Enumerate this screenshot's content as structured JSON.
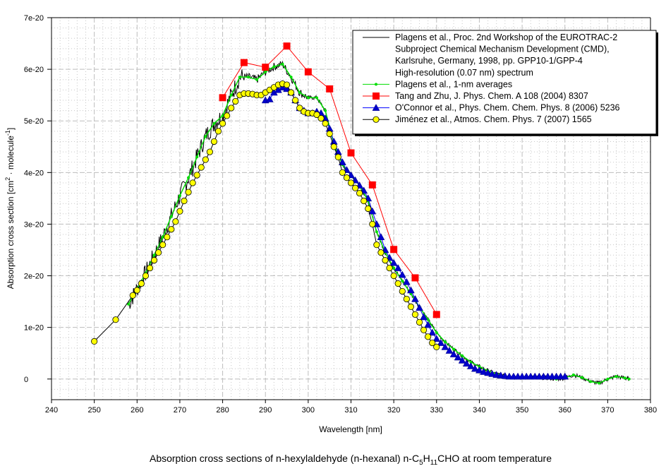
{
  "chart_data": {
    "type": "line",
    "title": "Absorption cross sections of n-hexylaldehyde (n-hexanal) n-C5H11CHO at room temperature",
    "title_parts": {
      "pre": "Absorption cross sections of n-hexylaldehyde (n-hexanal) n-C",
      "sub1": "5",
      "mid": "H",
      "sub2": "11",
      "post": "CHO at room temperature"
    },
    "xlabel": "Wavelength [nm]",
    "ylabel": "Absorption cross section [cm2 · molecule-1]",
    "ylabel_parts": {
      "pre": "Absorption cross section [cm",
      "sup1": "2",
      "mid": " · molecule",
      "sup2": "-1",
      "post": "]"
    },
    "xlim": [
      240,
      380
    ],
    "ylim": [
      -4e-21,
      7e-20
    ],
    "xticks": [
      "240",
      "250",
      "260",
      "270",
      "280",
      "290",
      "300",
      "310",
      "320",
      "330",
      "340",
      "350",
      "360",
      "370",
      "380"
    ],
    "yticks": [
      "0",
      "1e-20",
      "2e-20",
      "3e-20",
      "4e-20",
      "5e-20",
      "6e-20",
      "7e-20"
    ],
    "ytick_values": [
      0,
      1,
      2,
      3,
      4,
      5,
      6,
      7
    ],
    "y_unit_scale": 1e-20,
    "grid": true,
    "legend_position": "top-right",
    "series": [
      {
        "name": "Plagens et al., Proc. 2nd Workshop of the EUROTRAC-2 Subproject Chemical Mechanism Development (CMD), Karlsruhe, Germany, 1998, pp. GPP10-1/GPP-4 High-resolution (0.07 nm) spectrum",
        "legend_lines": [
          "Plagens et al., Proc. 2nd Workshop of the EUROTRAC-2",
          "Subproject Chemical Mechanism Development (CMD),",
          "Karlsruhe, Germany, 1998, pp. GPP10-1/GPP-4",
          "High-resolution (0.07 nm) spectrum"
        ],
        "color": "#000000",
        "marker": "none",
        "noisy": true,
        "x": [
          258,
          260,
          262,
          264,
          266,
          268,
          270,
          272,
          274,
          276,
          278,
          280,
          282,
          284,
          286,
          288,
          290,
          292,
          294,
          296,
          298,
          300,
          302,
          304,
          306,
          308,
          310,
          312,
          314,
          316,
          318,
          320,
          322,
          324,
          326,
          328,
          330,
          332,
          334,
          336,
          338,
          340,
          342,
          344,
          346,
          348,
          350,
          352,
          354,
          356,
          358,
          360,
          362,
          364,
          366,
          368,
          370,
          372,
          374,
          375
        ],
        "y": [
          1.45,
          1.75,
          2.05,
          2.4,
          2.75,
          3.15,
          3.55,
          3.9,
          4.3,
          4.7,
          4.95,
          5.1,
          5.5,
          5.85,
          5.85,
          5.8,
          5.95,
          6.05,
          6.1,
          5.85,
          5.55,
          5.45,
          5.45,
          5.2,
          4.55,
          4.15,
          3.95,
          3.75,
          3.45,
          2.85,
          2.45,
          2.15,
          1.9,
          1.65,
          1.4,
          1.15,
          0.9,
          0.72,
          0.58,
          0.45,
          0.33,
          0.24,
          0.16,
          0.1,
          0.05,
          0.03,
          0.03,
          0.04,
          0.03,
          0.02,
          0.0,
          0.02,
          0.08,
          0.03,
          -0.05,
          -0.08,
          0.0,
          0.05,
          0.02,
          0.0
        ]
      },
      {
        "name": "Plagens et al., 1-nm averages",
        "legend_lines": [
          "Plagens et al., 1-nm averages"
        ],
        "color": "#00ff00",
        "marker": "dot",
        "x": [
          258,
          260,
          262,
          264,
          266,
          268,
          270,
          272,
          274,
          276,
          278,
          280,
          282,
          284,
          286,
          288,
          290,
          292,
          294,
          296,
          298,
          300,
          302,
          304,
          306,
          308,
          310,
          312,
          314,
          316,
          318,
          320,
          322,
          324,
          326,
          328,
          330,
          332,
          334,
          336,
          338,
          340,
          342,
          344,
          346,
          348,
          350,
          352,
          354,
          356,
          358,
          360,
          362,
          364,
          366,
          368,
          370,
          372,
          374,
          375
        ],
        "y": [
          1.45,
          1.75,
          2.05,
          2.4,
          2.75,
          3.15,
          3.55,
          3.9,
          4.3,
          4.7,
          4.95,
          5.1,
          5.5,
          5.85,
          5.85,
          5.8,
          5.95,
          6.05,
          6.1,
          5.85,
          5.55,
          5.45,
          5.45,
          5.2,
          4.55,
          4.15,
          3.95,
          3.75,
          3.45,
          2.85,
          2.45,
          2.15,
          1.9,
          1.65,
          1.4,
          1.15,
          0.9,
          0.72,
          0.58,
          0.45,
          0.33,
          0.24,
          0.16,
          0.1,
          0.05,
          0.03,
          0.03,
          0.04,
          0.03,
          0.02,
          0.0,
          0.02,
          0.08,
          0.03,
          -0.05,
          -0.08,
          0.0,
          0.05,
          0.02,
          0.0
        ]
      },
      {
        "name": "Tang and Zhu, J. Phys. Chem. A 108 (2004) 8307",
        "legend_lines": [
          "Tang and Zhu, J. Phys. Chem. A 108 (2004) 8307"
        ],
        "color": "#ff0000",
        "marker": "square",
        "x": [
          280,
          285,
          290,
          295,
          300,
          305,
          310,
          315,
          320,
          325,
          330
        ],
        "y": [
          5.45,
          6.13,
          6.04,
          6.45,
          5.95,
          5.62,
          4.38,
          3.76,
          2.51,
          1.96,
          1.25
        ]
      },
      {
        "name": "O'Connor et al., Phys. Chem. Chem. Phys. 8 (2006) 5236",
        "legend_lines": [
          "O'Connor et al., Phys. Chem. Chem. Phys. 8 (2006) 5236"
        ],
        "color": "#0000ff",
        "marker": "triangle",
        "x": [
          290,
          291,
          292,
          293,
          294,
          295,
          296,
          297,
          298,
          299,
          300,
          301,
          302,
          303,
          304,
          305,
          306,
          307,
          308,
          309,
          310,
          311,
          312,
          313,
          314,
          315,
          316,
          317,
          318,
          319,
          320,
          321,
          322,
          323,
          324,
          325,
          326,
          327,
          328,
          329,
          330,
          331,
          332,
          333,
          334,
          335,
          336,
          337,
          338,
          339,
          340,
          341,
          342,
          343,
          344,
          345,
          346,
          347,
          348,
          349,
          350,
          351,
          352,
          353,
          354,
          355,
          356,
          357,
          358,
          359,
          360
        ],
        "y": [
          5.4,
          5.42,
          5.55,
          5.6,
          5.65,
          5.62,
          5.55,
          5.4,
          5.25,
          5.2,
          5.15,
          5.15,
          5.18,
          5.15,
          5.05,
          4.85,
          4.6,
          4.4,
          4.2,
          4.05,
          3.95,
          3.85,
          3.75,
          3.65,
          3.5,
          3.25,
          3.0,
          2.75,
          2.5,
          2.35,
          2.25,
          2.15,
          2.02,
          1.88,
          1.72,
          1.55,
          1.38,
          1.2,
          1.05,
          0.9,
          0.78,
          0.7,
          0.62,
          0.55,
          0.48,
          0.42,
          0.36,
          0.3,
          0.25,
          0.2,
          0.17,
          0.14,
          0.12,
          0.1,
          0.08,
          0.07,
          0.06,
          0.05,
          0.05,
          0.05,
          0.05,
          0.05,
          0.05,
          0.05,
          0.05,
          0.05,
          0.05,
          0.05,
          0.05,
          0.05,
          0.05
        ]
      },
      {
        "name": "Jiménez et al., Atmos. Chem. Phys. 7 (2007) 1565",
        "legend_lines": [
          "Jiménez et al., Atmos. Chem. Phys. 7 (2007) 1565"
        ],
        "color": "#000000",
        "fill": "#ffff00",
        "marker": "circle",
        "x": [
          250,
          255,
          259,
          260,
          261,
          262,
          263,
          264,
          265,
          266,
          267,
          268,
          269,
          270,
          271,
          272,
          273,
          274,
          275,
          276,
          277,
          278,
          279,
          280,
          281,
          282,
          283,
          284,
          285,
          286,
          287,
          288,
          289,
          290,
          291,
          292,
          293,
          294,
          295,
          296,
          297,
          298,
          299,
          300,
          301,
          302,
          303,
          304,
          305,
          306,
          307,
          308,
          309,
          310,
          311,
          312,
          313,
          314,
          315,
          316,
          317,
          318,
          319,
          320,
          321,
          322,
          323,
          324,
          325,
          326,
          327,
          328,
          329,
          330
        ],
        "y": [
          0.73,
          1.15,
          1.62,
          1.72,
          1.85,
          2.0,
          2.15,
          2.3,
          2.45,
          2.6,
          2.75,
          2.9,
          3.05,
          3.25,
          3.45,
          3.62,
          3.8,
          3.95,
          4.1,
          4.25,
          4.4,
          4.6,
          4.8,
          4.95,
          5.1,
          5.25,
          5.38,
          5.5,
          5.53,
          5.53,
          5.52,
          5.5,
          5.5,
          5.55,
          5.6,
          5.65,
          5.7,
          5.72,
          5.7,
          5.55,
          5.4,
          5.25,
          5.18,
          5.15,
          5.15,
          5.12,
          5.05,
          4.95,
          4.75,
          4.5,
          4.3,
          4.0,
          3.9,
          3.8,
          3.7,
          3.6,
          3.45,
          3.3,
          3.0,
          2.6,
          2.45,
          2.3,
          2.15,
          2.0,
          1.85,
          1.7,
          1.55,
          1.4,
          1.25,
          1.1,
          0.95,
          0.82,
          0.7,
          0.62
        ]
      }
    ]
  }
}
